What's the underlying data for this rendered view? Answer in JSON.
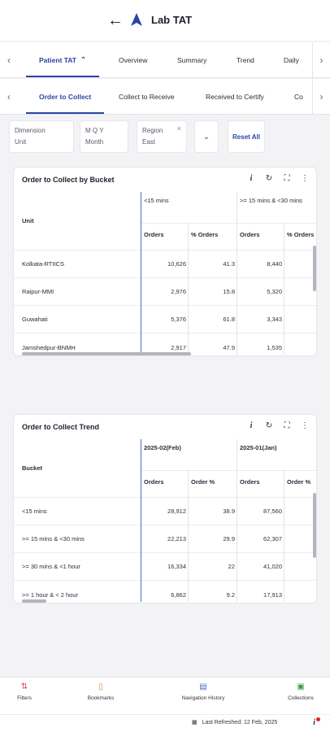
{
  "header": {
    "title": "Lab TAT"
  },
  "tabs_primary": [
    "Patient TAT",
    "Overview",
    "Summary",
    "Trend",
    "Daily"
  ],
  "tabs_secondary": [
    "Order to Collect",
    "Collect to Receive",
    "Received to Certify",
    "Co"
  ],
  "filters": [
    {
      "label": "Dimension",
      "value": "Unit"
    },
    {
      "label": "M Q Y",
      "value": "Month"
    },
    {
      "label": "Region",
      "value": "East",
      "clear": "×"
    }
  ],
  "reset_label": "Reset All",
  "card1": {
    "title": "Order to Collect by Bucket",
    "row_header": "Unit",
    "groups": [
      "<15 mins",
      ">= 15 mins & <30 mins"
    ],
    "cols": [
      "Orders",
      "% Orders",
      "Orders",
      "% Orders"
    ],
    "rows": [
      [
        "Kolkata-RTIICS",
        "10,626",
        "41.3",
        "8,440"
      ],
      [
        "Raipur-MMI",
        "2,976",
        "15.8",
        "5,320"
      ],
      [
        "Guwahati",
        "5,376",
        "61.8",
        "3,343"
      ],
      [
        "Jamshedpur-BNMH",
        "2,917",
        "47.9",
        "1,535"
      ]
    ]
  },
  "card2": {
    "title": "Order to Collect Trend",
    "row_header": "Bucket",
    "groups": [
      "2025-02(Feb)",
      "2025-01(Jan)"
    ],
    "cols": [
      "Orders",
      "Order %",
      "Orders",
      "Order %"
    ],
    "rows": [
      [
        "<15 mins",
        "28,912",
        "38.9",
        "87,560"
      ],
      [
        ">= 15 mins & <30 mins",
        "22,213",
        "29.9",
        "62,307"
      ],
      [
        ">= 30 mins & <1 hour",
        "16,334",
        "22",
        "41,020"
      ],
      [
        ">= 1 hour & < 2 hour",
        "6,862",
        "9.2",
        "17,913"
      ]
    ]
  },
  "bottom_nav": [
    "Filters",
    "Bookmarks",
    "Navigation History",
    "Collections"
  ],
  "footer": {
    "refreshed": "Last Refreshed: 12 Feb, 2025",
    "info": "i"
  },
  "colors": {
    "accent": "#2c44a4",
    "divider_blue": "#4c6bd6",
    "notify": "#d9281f"
  }
}
